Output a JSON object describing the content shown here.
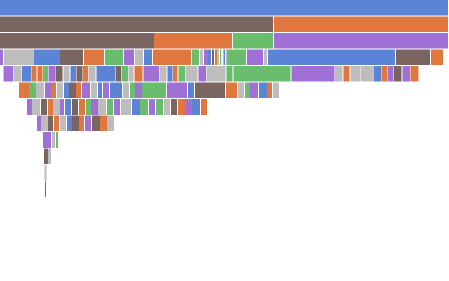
{
  "colors": {
    "blue": "#5b84d6",
    "brown": "#7a6560",
    "orange": "#e0773f",
    "green": "#69bd6d",
    "purple": "#a070d6",
    "gray": "#bdbdbd",
    "separator": "#ffffff"
  },
  "chart_data": {
    "type": "icicle",
    "title": "",
    "orientation": "top-down",
    "total": 640,
    "levels": [
      [
        {
          "value": 640,
          "color": "blue"
        }
      ],
      [
        {
          "value": 390,
          "color": "brown"
        },
        {
          "value": 250,
          "color": "orange"
        }
      ],
      [
        {
          "value": 220,
          "color": "brown"
        },
        {
          "value": 112,
          "color": "orange"
        },
        {
          "value": 58,
          "color": "green"
        },
        {
          "value": 250,
          "color": "purple"
        }
      ],
      [
        {
          "value": 5,
          "color": "purple"
        },
        {
          "value": 44,
          "color": "gray"
        },
        {
          "value": 37,
          "color": "blue"
        },
        {
          "value": 34,
          "color": "brown"
        },
        {
          "value": 29,
          "color": "orange"
        },
        {
          "value": 28,
          "color": "green"
        },
        {
          "value": 15,
          "color": "purple"
        },
        {
          "value": 13,
          "color": "gray"
        },
        {
          "value": 13,
          "color": "blue"
        },
        {
          "value": 2,
          "color": "orange"
        },
        {
          "value": 53,
          "color": "orange"
        },
        {
          "value": 12,
          "color": "green"
        },
        {
          "value": 6,
          "color": "gray"
        },
        {
          "value": 6,
          "color": "purple"
        },
        {
          "value": 5,
          "color": "blue"
        },
        {
          "value": 4,
          "color": "brown"
        },
        {
          "value": 4,
          "color": "orange"
        },
        {
          "value": 3,
          "color": "gray"
        },
        {
          "value": 3,
          "color": "green"
        },
        {
          "value": 2,
          "color": "purple"
        },
        {
          "value": 2,
          "color": "gray"
        },
        {
          "value": 2,
          "color": "blue"
        },
        {
          "value": 2,
          "color": "gray"
        },
        {
          "value": 28,
          "color": "green"
        },
        {
          "value": 24,
          "color": "purple"
        },
        {
          "value": 6,
          "color": "gray"
        },
        {
          "value": 182,
          "color": "blue"
        },
        {
          "value": 50,
          "color": "brown"
        },
        {
          "value": 18,
          "color": "orange"
        }
      ],
      [
        {
          "value": 15,
          "color": "purple"
        },
        {
          "value": 12,
          "color": "gray"
        },
        {
          "value": 14,
          "color": "blue"
        },
        {
          "value": 8,
          "color": "orange"
        },
        {
          "value": 8,
          "color": "orange"
        },
        {
          "value": 8,
          "color": "green"
        },
        {
          "value": 10,
          "color": "purple"
        },
        {
          "value": 11,
          "color": "brown"
        },
        {
          "value": 10,
          "color": "gray"
        },
        {
          "value": 9,
          "color": "blue"
        },
        {
          "value": 9,
          "color": "brown"
        },
        {
          "value": 8,
          "color": "orange"
        },
        {
          "value": 11,
          "color": "gray"
        },
        {
          "value": 28,
          "color": "blue"
        },
        {
          "value": 8,
          "color": "brown"
        },
        {
          "value": 10,
          "color": "green"
        },
        {
          "value": 8,
          "color": "gray"
        },
        {
          "value": 13,
          "color": "orange"
        },
        {
          "value": 23,
          "color": "purple"
        },
        {
          "value": 11,
          "color": "gray"
        },
        {
          "value": 8,
          "color": "blue"
        },
        {
          "value": 8,
          "color": "orange"
        },
        {
          "value": 10,
          "color": "green"
        },
        {
          "value": 18,
          "color": "gray"
        },
        {
          "value": 12,
          "color": "purple"
        },
        {
          "value": 28,
          "color": "gray"
        },
        {
          "value": 10,
          "color": "green"
        },
        {
          "value": 83,
          "color": "green"
        },
        {
          "value": 62,
          "color": "purple"
        },
        {
          "value": 12,
          "color": "gray"
        },
        {
          "value": 10,
          "color": "orange"
        },
        {
          "value": 15,
          "color": "gray"
        },
        {
          "value": 18,
          "color": "gray"
        },
        {
          "value": 12,
          "color": "blue"
        },
        {
          "value": 8,
          "color": "orange"
        },
        {
          "value": 9,
          "color": "purple"
        },
        {
          "value": 12,
          "color": "brown"
        },
        {
          "value": 12,
          "color": "purple"
        },
        {
          "value": 12,
          "color": "orange"
        }
      ],
      [
        {
          "value": 15,
          "color": "orange"
        },
        {
          "value": 10,
          "color": "green"
        },
        {
          "value": 12,
          "color": "gray"
        },
        {
          "value": 9,
          "color": "purple"
        },
        {
          "value": 8,
          "color": "orange"
        },
        {
          "value": 10,
          "color": "gray"
        },
        {
          "value": 8,
          "color": "blue"
        },
        {
          "value": 10,
          "color": "brown"
        },
        {
          "value": 8,
          "color": "orange"
        },
        {
          "value": 12,
          "color": "purple"
        },
        {
          "value": 10,
          "color": "gray"
        },
        {
          "value": 8,
          "color": "blue"
        },
        {
          "value": 10,
          "color": "purple"
        },
        {
          "value": 18,
          "color": "blue"
        },
        {
          "value": 10,
          "color": "gray"
        },
        {
          "value": 8,
          "color": "green"
        },
        {
          "value": 10,
          "color": "purple"
        },
        {
          "value": 35,
          "color": "green"
        },
        {
          "value": 30,
          "color": "purple"
        },
        {
          "value": 10,
          "color": "blue"
        },
        {
          "value": 44,
          "color": "brown"
        },
        {
          "value": 17,
          "color": "orange"
        },
        {
          "value": 10,
          "color": "gray"
        },
        {
          "value": 8,
          "color": "green"
        },
        {
          "value": 12,
          "color": "purple"
        },
        {
          "value": 12,
          "color": "blue"
        },
        {
          "value": 8,
          "color": "orange"
        },
        {
          "value": 10,
          "color": "gray"
        }
      ],
      [
        {
          "value": 8,
          "color": "purple"
        },
        {
          "value": 12,
          "color": "gray"
        },
        {
          "value": 10,
          "color": "brown"
        },
        {
          "value": 8,
          "color": "orange"
        },
        {
          "value": 10,
          "color": "gray"
        },
        {
          "value": 6,
          "color": "purple"
        },
        {
          "value": 10,
          "color": "blue"
        },
        {
          "value": 10,
          "color": "brown"
        },
        {
          "value": 10,
          "color": "orange"
        },
        {
          "value": 8,
          "color": "green"
        },
        {
          "value": 10,
          "color": "purple"
        },
        {
          "value": 12,
          "color": "gray"
        },
        {
          "value": 10,
          "color": "green"
        },
        {
          "value": 10,
          "color": "purple"
        },
        {
          "value": 16,
          "color": "gray"
        },
        {
          "value": 12,
          "color": "blue"
        },
        {
          "value": 12,
          "color": "green"
        },
        {
          "value": 10,
          "color": "purple"
        },
        {
          "value": 12,
          "color": "green"
        },
        {
          "value": 10,
          "color": "gray"
        },
        {
          "value": 10,
          "color": "brown"
        },
        {
          "value": 10,
          "color": "orange"
        },
        {
          "value": 10,
          "color": "purple"
        },
        {
          "value": 12,
          "color": "blue"
        },
        {
          "value": 10,
          "color": "orange"
        }
      ],
      [
        {
          "value": 6,
          "color": "purple"
        },
        {
          "value": 10,
          "color": "gray"
        },
        {
          "value": 8,
          "color": "brown"
        },
        {
          "value": 8,
          "color": "orange"
        },
        {
          "value": 10,
          "color": "gray"
        },
        {
          "value": 8,
          "color": "blue"
        },
        {
          "value": 10,
          "color": "brown"
        },
        {
          "value": 8,
          "color": "orange"
        },
        {
          "value": 10,
          "color": "purple"
        },
        {
          "value": 12,
          "color": "brown"
        },
        {
          "value": 10,
          "color": "orange"
        },
        {
          "value": 10,
          "color": "gray"
        }
      ],
      [
        {
          "value": 4,
          "color": "purple"
        },
        {
          "value": 8,
          "color": "purple"
        },
        {
          "value": 6,
          "color": "gray"
        },
        {
          "value": 4,
          "color": "green"
        }
      ],
      [
        {
          "value": 6,
          "color": "brown"
        },
        {
          "value": 4,
          "color": "gray"
        }
      ],
      [
        {
          "value": 4,
          "color": "gray"
        }
      ],
      [
        {
          "value": 2,
          "color": "brown"
        }
      ]
    ]
  }
}
